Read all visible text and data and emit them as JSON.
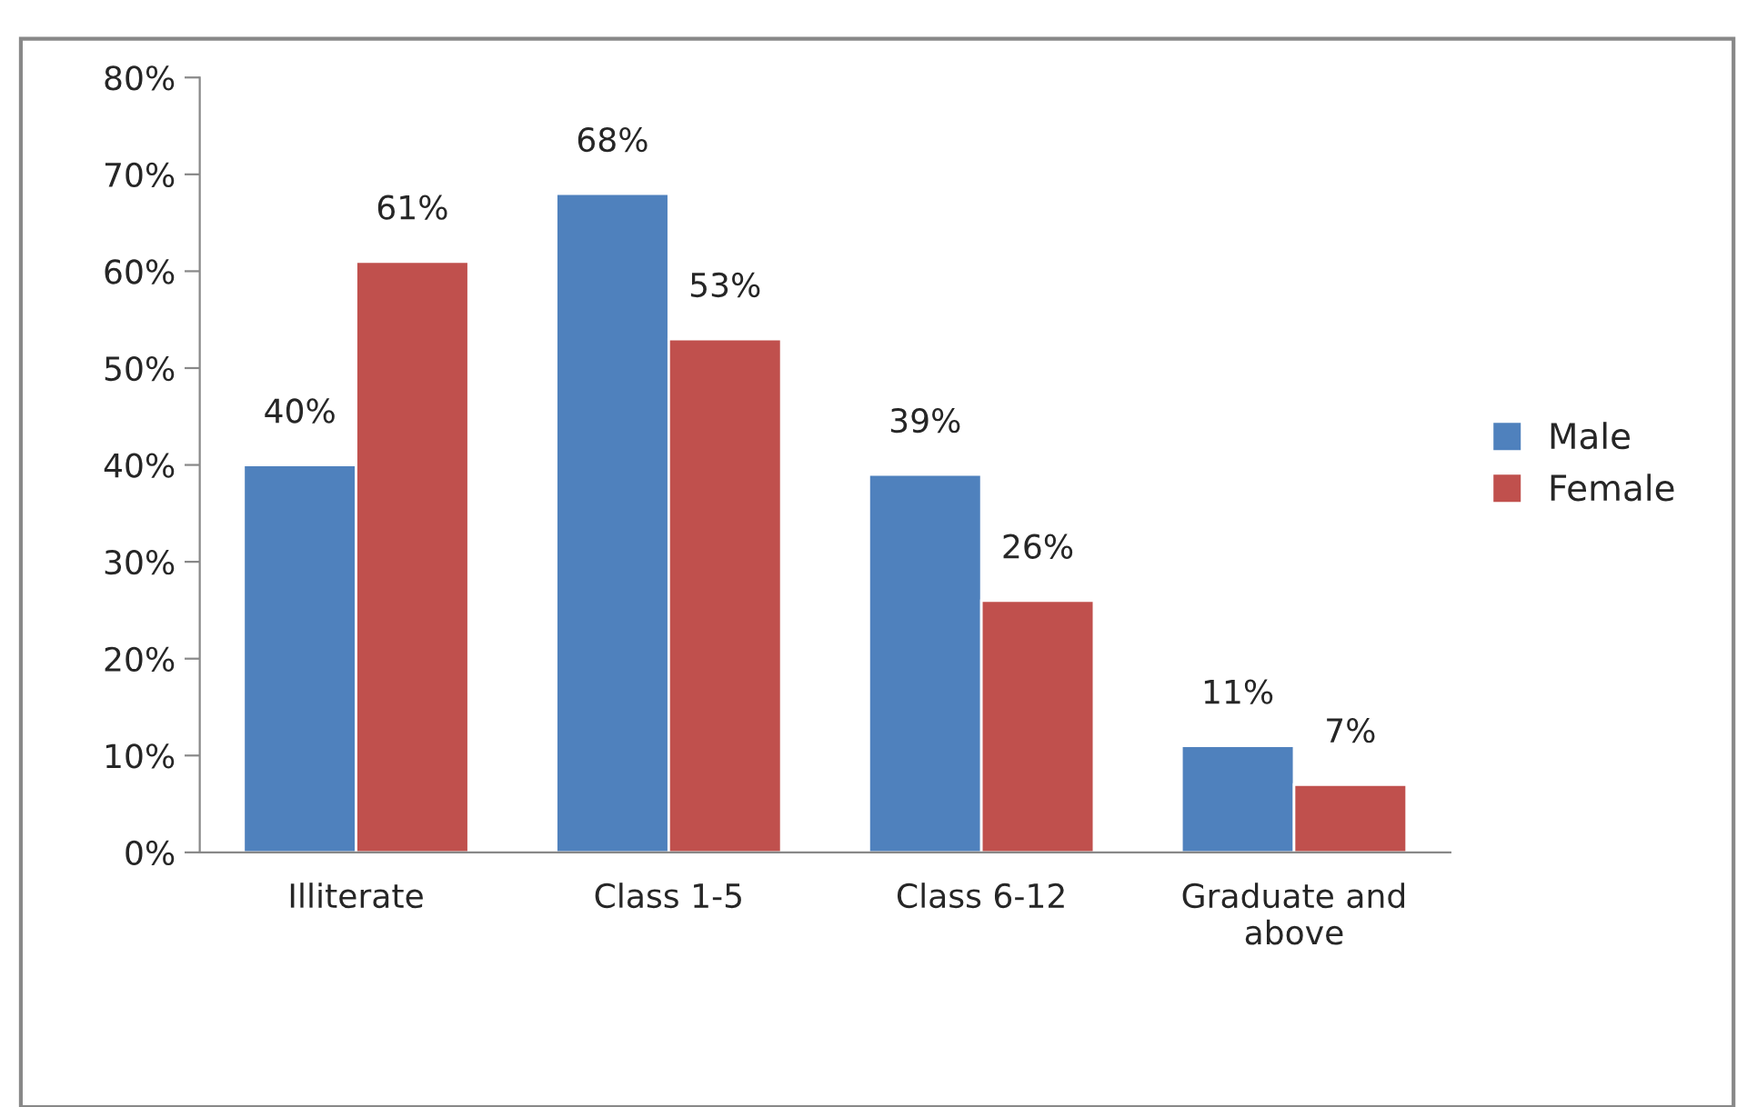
{
  "chart_data": {
    "type": "bar",
    "categories": [
      "Illiterate",
      "Class 1-5",
      "Class 6-12",
      "Graduate and above"
    ],
    "series": [
      {
        "name": "Male",
        "color": "#4f81bd",
        "values": [
          40,
          68,
          39,
          11
        ],
        "value_labels": [
          "40%",
          "68%",
          "39%",
          "11%"
        ]
      },
      {
        "name": "Female",
        "color": "#c0504d",
        "values": [
          61,
          53,
          26,
          7
        ],
        "value_labels": [
          "61%",
          "53%",
          "26%",
          "7%"
        ]
      }
    ],
    "ylim": [
      0,
      80
    ],
    "yticks": [
      {
        "value": 0,
        "label": "0%"
      },
      {
        "value": 10,
        "label": "10%"
      },
      {
        "value": 20,
        "label": "20%"
      },
      {
        "value": 30,
        "label": "30%"
      },
      {
        "value": 40,
        "label": "40%"
      },
      {
        "value": 50,
        "label": "50%"
      },
      {
        "value": 60,
        "label": "60%"
      },
      {
        "value": 70,
        "label": "70%"
      },
      {
        "value": 80,
        "label": "80%"
      }
    ],
    "grid": false,
    "legend": "right"
  }
}
